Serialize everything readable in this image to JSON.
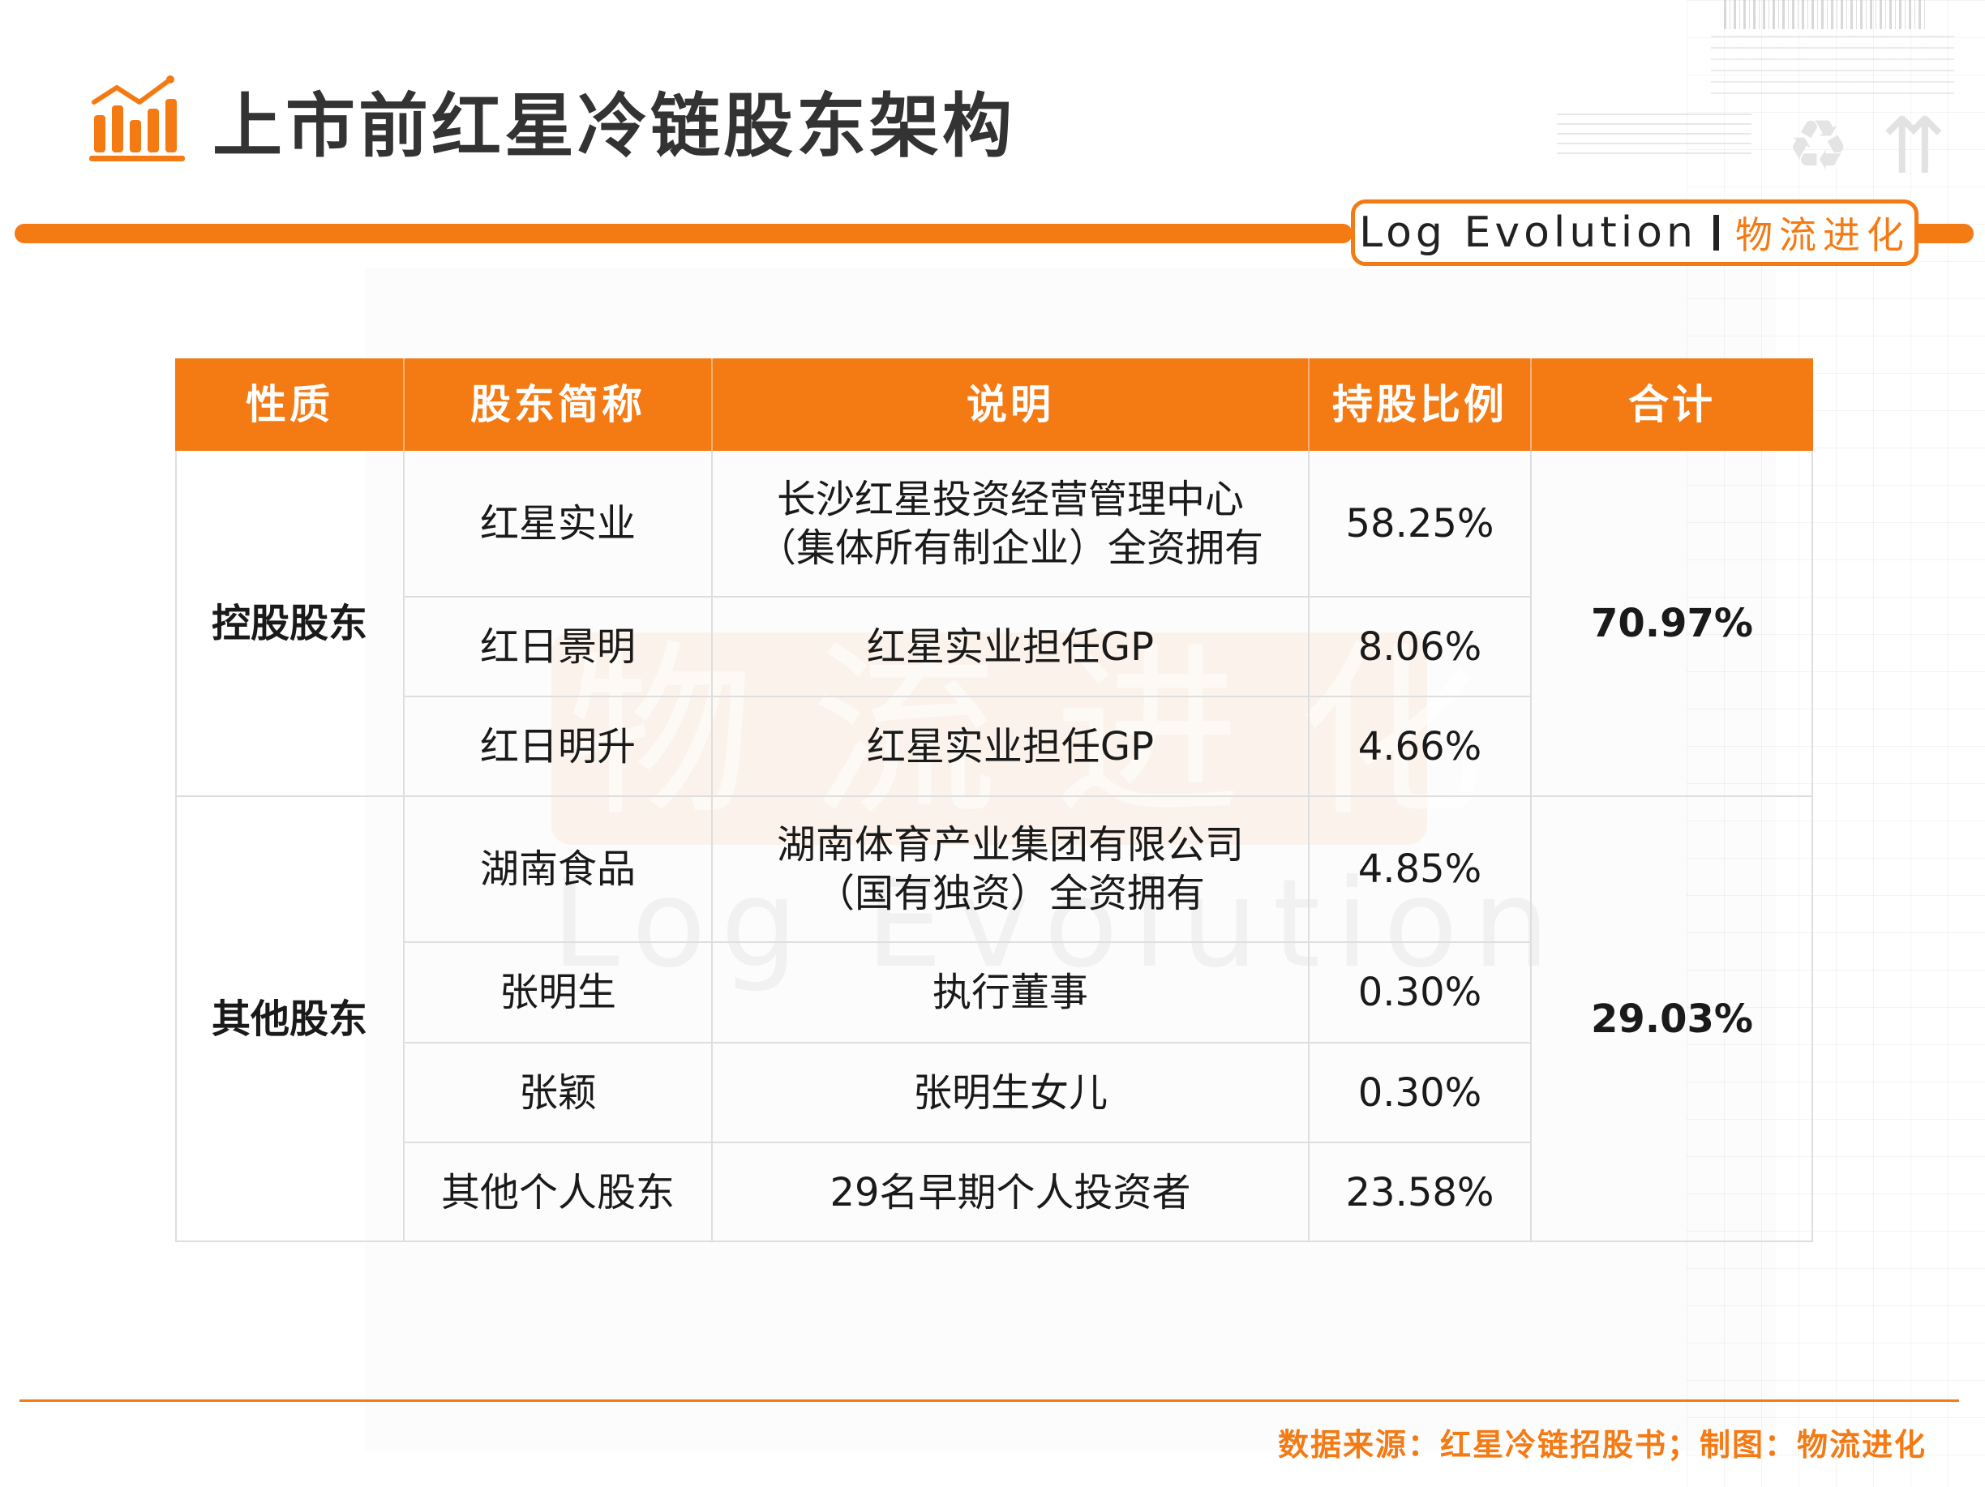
{
  "header": {
    "title": "上市前红星冷链股东架构",
    "brand_en": "Log Evolution",
    "brand_cn": "物流进化",
    "accent_color": "#f47a14"
  },
  "watermark": {
    "cn": "物流进化",
    "en": "Log Evolution"
  },
  "table": {
    "headers": [
      "性质",
      "股东简称",
      "说明",
      "持股比例",
      "合计"
    ],
    "groups": [
      {
        "nature": "控股股东",
        "total": "70.97%",
        "rows": [
          {
            "name": "红星实业",
            "desc": [
              "长沙红星投资经营管理中心",
              "（集体所有制企业）全资拥有"
            ],
            "ratio": "58.25%"
          },
          {
            "name": "红日景明",
            "desc": [
              "红星实业担任GP"
            ],
            "ratio": "8.06%"
          },
          {
            "name": "红日明升",
            "desc": [
              "红星实业担任GP"
            ],
            "ratio": "4.66%"
          }
        ]
      },
      {
        "nature": "其他股东",
        "total": "29.03%",
        "rows": [
          {
            "name": "湖南食品",
            "desc": [
              "湖南体育产业集团有限公司",
              "（国有独资）全资拥有"
            ],
            "ratio": "4.85%"
          },
          {
            "name": "张明生",
            "desc": [
              "执行董事"
            ],
            "ratio": "0.30%"
          },
          {
            "name": "张颖",
            "desc": [
              "张明生女儿"
            ],
            "ratio": "0.30%"
          },
          {
            "name": "其他个人股东",
            "desc": [
              "29名早期个人投资者"
            ],
            "ratio": "23.58%"
          }
        ]
      }
    ]
  },
  "footer": {
    "source": "数据来源：红星冷链招股书；制图：物流进化"
  }
}
